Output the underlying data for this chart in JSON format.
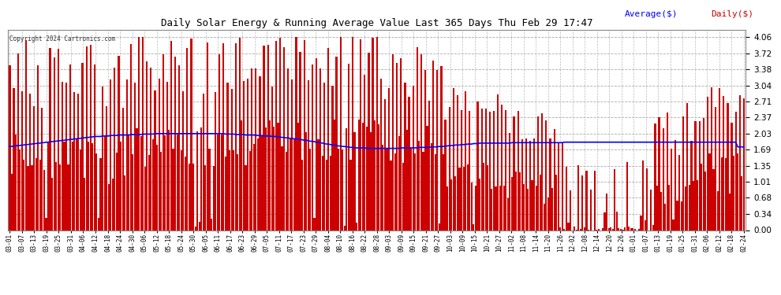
{
  "title": "Daily Solar Energy & Running Average Value Last 365 Days Thu Feb 29 17:47",
  "copyright": "Copyright 2024 Cartronics.com",
  "legend_avg": "Average($)",
  "legend_daily": "Daily($)",
  "avg_color": "#0000ff",
  "daily_color": "#cc0000",
  "bg_color": "#ffffff",
  "grid_color": "#aaaaaa",
  "yticks": [
    0.0,
    0.34,
    0.68,
    1.01,
    1.35,
    1.69,
    2.03,
    2.37,
    2.71,
    3.04,
    3.38,
    3.72,
    4.06
  ],
  "ylim": [
    0.0,
    4.22
  ],
  "xlabels": [
    "03-01",
    "03-07",
    "03-13",
    "03-19",
    "03-25",
    "03-31",
    "04-06",
    "04-12",
    "04-18",
    "04-24",
    "04-30",
    "05-06",
    "05-12",
    "05-18",
    "05-24",
    "05-30",
    "06-05",
    "06-11",
    "06-17",
    "06-23",
    "06-29",
    "07-05",
    "07-11",
    "07-17",
    "07-23",
    "07-29",
    "08-04",
    "08-10",
    "08-16",
    "08-22",
    "08-28",
    "09-03",
    "09-09",
    "09-15",
    "09-21",
    "09-27",
    "10-03",
    "10-09",
    "10-15",
    "10-21",
    "10-27",
    "11-02",
    "11-08",
    "11-14",
    "11-20",
    "11-26",
    "12-02",
    "12-08",
    "12-14",
    "12-20",
    "12-26",
    "01-01",
    "01-07",
    "01-13",
    "01-19",
    "01-25",
    "01-31",
    "02-06",
    "02-12",
    "02-18",
    "02-24"
  ],
  "avg_line": [
    1.76,
    1.76,
    1.77,
    1.77,
    1.78,
    1.78,
    1.79,
    1.79,
    1.8,
    1.8,
    1.81,
    1.81,
    1.82,
    1.82,
    1.83,
    1.83,
    1.84,
    1.84,
    1.85,
    1.85,
    1.86,
    1.86,
    1.87,
    1.87,
    1.88,
    1.88,
    1.89,
    1.89,
    1.9,
    1.9,
    1.91,
    1.91,
    1.92,
    1.92,
    1.93,
    1.93,
    1.94,
    1.94,
    1.95,
    1.95,
    1.96,
    1.96,
    1.97,
    1.97,
    1.97,
    1.97,
    1.98,
    1.98,
    1.98,
    1.98,
    1.99,
    1.99,
    1.99,
    1.99,
    2.0,
    2.0,
    2.0,
    2.0,
    2.0,
    2.0,
    2.01,
    2.01,
    2.01,
    2.01,
    2.01,
    2.01,
    2.02,
    2.02,
    2.02,
    2.02,
    2.02,
    2.02,
    2.03,
    2.03,
    2.03,
    2.03,
    2.03,
    2.03,
    2.03,
    2.03,
    2.03,
    2.03,
    2.03,
    2.03,
    2.03,
    2.03,
    2.03,
    2.03,
    2.03,
    2.03,
    2.03,
    2.03,
    2.03,
    2.03,
    2.03,
    2.03,
    2.03,
    2.03,
    2.03,
    2.03,
    2.03,
    2.03,
    2.03,
    2.03,
    2.03,
    2.03,
    2.03,
    2.02,
    2.02,
    2.02,
    2.02,
    2.02,
    2.01,
    2.01,
    2.01,
    2.01,
    2.01,
    2.0,
    2.0,
    2.0,
    2.0,
    2.0,
    1.99,
    1.99,
    1.99,
    1.99,
    1.98,
    1.98,
    1.98,
    1.98,
    1.97,
    1.97,
    1.97,
    1.96,
    1.96,
    1.95,
    1.95,
    1.94,
    1.94,
    1.93,
    1.93,
    1.92,
    1.92,
    1.91,
    1.91,
    1.9,
    1.89,
    1.89,
    1.88,
    1.87,
    1.87,
    1.86,
    1.85,
    1.85,
    1.84,
    1.83,
    1.82,
    1.81,
    1.81,
    1.8,
    1.79,
    1.79,
    1.78,
    1.77,
    1.77,
    1.76,
    1.76,
    1.75,
    1.75,
    1.74,
    1.74,
    1.73,
    1.73,
    1.73,
    1.73,
    1.73,
    1.73,
    1.72,
    1.72,
    1.72,
    1.72,
    1.72,
    1.72,
    1.72,
    1.72,
    1.72,
    1.72,
    1.72,
    1.72,
    1.72,
    1.72,
    1.72,
    1.72,
    1.72,
    1.73,
    1.73,
    1.73,
    1.73,
    1.73,
    1.73,
    1.73,
    1.73,
    1.73,
    1.74,
    1.74,
    1.74,
    1.74,
    1.74,
    1.74,
    1.75,
    1.75,
    1.75,
    1.75,
    1.76,
    1.76,
    1.76,
    1.77,
    1.77,
    1.78,
    1.78,
    1.78,
    1.79,
    1.79,
    1.79,
    1.8,
    1.8,
    1.8,
    1.81,
    1.81,
    1.81,
    1.82,
    1.82,
    1.82,
    1.83,
    1.83,
    1.83,
    1.83,
    1.83,
    1.83,
    1.83,
    1.83,
    1.83,
    1.83,
    1.83,
    1.83,
    1.83,
    1.83,
    1.83,
    1.83,
    1.84,
    1.84,
    1.84,
    1.84,
    1.84,
    1.84,
    1.84,
    1.84,
    1.84,
    1.84,
    1.84,
    1.84,
    1.84,
    1.84,
    1.84,
    1.84,
    1.84,
    1.84,
    1.84,
    1.84,
    1.84,
    1.84,
    1.84,
    1.84,
    1.84,
    1.84,
    1.85,
    1.85,
    1.85,
    1.85,
    1.85,
    1.85,
    1.85,
    1.85,
    1.85,
    1.85,
    1.85,
    1.85,
    1.85,
    1.85,
    1.85,
    1.85,
    1.85,
    1.85,
    1.85,
    1.85,
    1.85,
    1.85,
    1.85,
    1.85,
    1.85,
    1.85,
    1.85,
    1.85,
    1.85,
    1.85,
    1.85,
    1.85,
    1.85,
    1.85,
    1.85,
    1.85,
    1.85,
    1.85,
    1.85,
    1.85,
    1.85,
    1.85,
    1.85,
    1.85,
    1.85,
    1.85,
    1.85,
    1.85,
    1.85,
    1.85,
    1.85,
    1.85,
    1.85,
    1.85,
    1.85,
    1.85,
    1.85,
    1.85,
    1.85,
    1.85,
    1.85,
    1.85,
    1.85,
    1.85,
    1.85,
    1.85,
    1.85,
    1.85,
    1.85,
    1.85,
    1.85,
    1.85,
    1.85,
    1.85,
    1.85,
    1.85,
    1.85,
    1.85,
    1.85,
    1.85,
    1.85,
    1.85,
    1.85,
    1.85,
    1.85,
    1.85,
    1.75,
    1.75
  ]
}
